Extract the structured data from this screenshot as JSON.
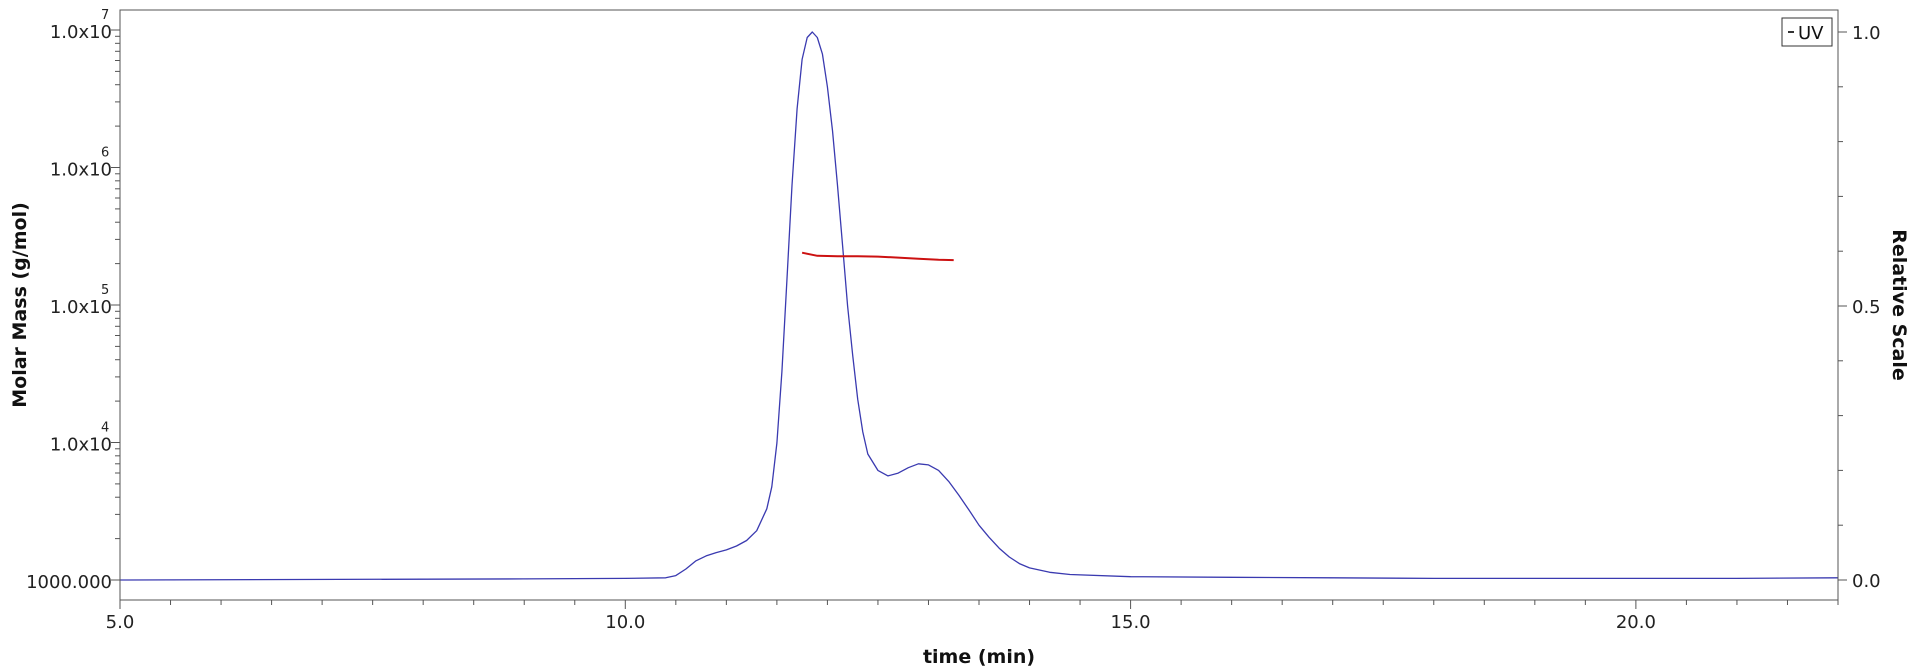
{
  "chart_data": {
    "type": "line",
    "xlabel": "time (min)",
    "ylabel_left": "Molar Mass (g/mol)",
    "ylabel_right": "Relative Scale",
    "x_range": [
      5.0,
      22.0
    ],
    "y_left_range": [
      1000,
      10000000
    ],
    "y_left_scale": "log",
    "y_right_range": [
      0.0,
      1.0
    ],
    "x_ticks": [
      {
        "value": 5.0,
        "label": "5.0"
      },
      {
        "value": 10.0,
        "label": "10.0"
      },
      {
        "value": 15.0,
        "label": "15.0"
      },
      {
        "value": 20.0,
        "label": "20.0"
      }
    ],
    "y_left_ticks": [
      {
        "value": 1000,
        "label": "1000.000",
        "exp": ""
      },
      {
        "value": 10000,
        "label": "1.0x10",
        "exp": "4"
      },
      {
        "value": 100000,
        "label": "1.0x10",
        "exp": "5"
      },
      {
        "value": 1000000,
        "label": "1.0x10",
        "exp": "6"
      },
      {
        "value": 10000000,
        "label": "1.0x10",
        "exp": "7"
      }
    ],
    "y_right_ticks": [
      {
        "value": 0.0,
        "label": "0.0"
      },
      {
        "value": 0.5,
        "label": "0.5"
      },
      {
        "value": 1.0,
        "label": "1.0"
      }
    ],
    "legend": {
      "position": "top-right",
      "label": "UV",
      "color": "#3333aa"
    },
    "series": [
      {
        "name": "UV",
        "axis": "right",
        "color": "#3a3ab0",
        "x": [
          5.0,
          9.0,
          10.0,
          10.4,
          10.5,
          10.6,
          10.7,
          10.8,
          10.9,
          11.0,
          11.1,
          11.2,
          11.3,
          11.4,
          11.45,
          11.5,
          11.55,
          11.6,
          11.65,
          11.7,
          11.75,
          11.8,
          11.85,
          11.9,
          11.95,
          12.0,
          12.05,
          12.1,
          12.15,
          12.2,
          12.25,
          12.3,
          12.35,
          12.4,
          12.5,
          12.6,
          12.7,
          12.8,
          12.9,
          13.0,
          13.1,
          13.2,
          13.3,
          13.4,
          13.5,
          13.6,
          13.7,
          13.8,
          13.9,
          14.0,
          14.2,
          14.4,
          15.0,
          16.0,
          17.0,
          18.0,
          19.0,
          20.0,
          21.0,
          22.0
        ],
        "y": [
          0.0,
          0.002,
          0.003,
          0.004,
          0.008,
          0.02,
          0.035,
          0.044,
          0.05,
          0.055,
          0.062,
          0.072,
          0.09,
          0.13,
          0.17,
          0.25,
          0.38,
          0.55,
          0.72,
          0.86,
          0.95,
          0.99,
          1.0,
          0.99,
          0.96,
          0.9,
          0.82,
          0.72,
          0.61,
          0.5,
          0.41,
          0.33,
          0.27,
          0.23,
          0.2,
          0.19,
          0.195,
          0.205,
          0.212,
          0.21,
          0.2,
          0.18,
          0.155,
          0.128,
          0.1,
          0.078,
          0.058,
          0.042,
          0.03,
          0.022,
          0.014,
          0.01,
          0.006,
          0.005,
          0.004,
          0.003,
          0.003,
          0.003,
          0.003,
          0.004
        ]
      },
      {
        "name": "Molar Mass",
        "axis": "left",
        "color": "#cc1111",
        "x": [
          11.75,
          11.9,
          12.1,
          12.3,
          12.5,
          12.7,
          12.9,
          13.1,
          13.25
        ],
        "y": [
          240000,
          228000,
          226000,
          226000,
          225000,
          221000,
          217000,
          213000,
          212000
        ]
      }
    ]
  }
}
